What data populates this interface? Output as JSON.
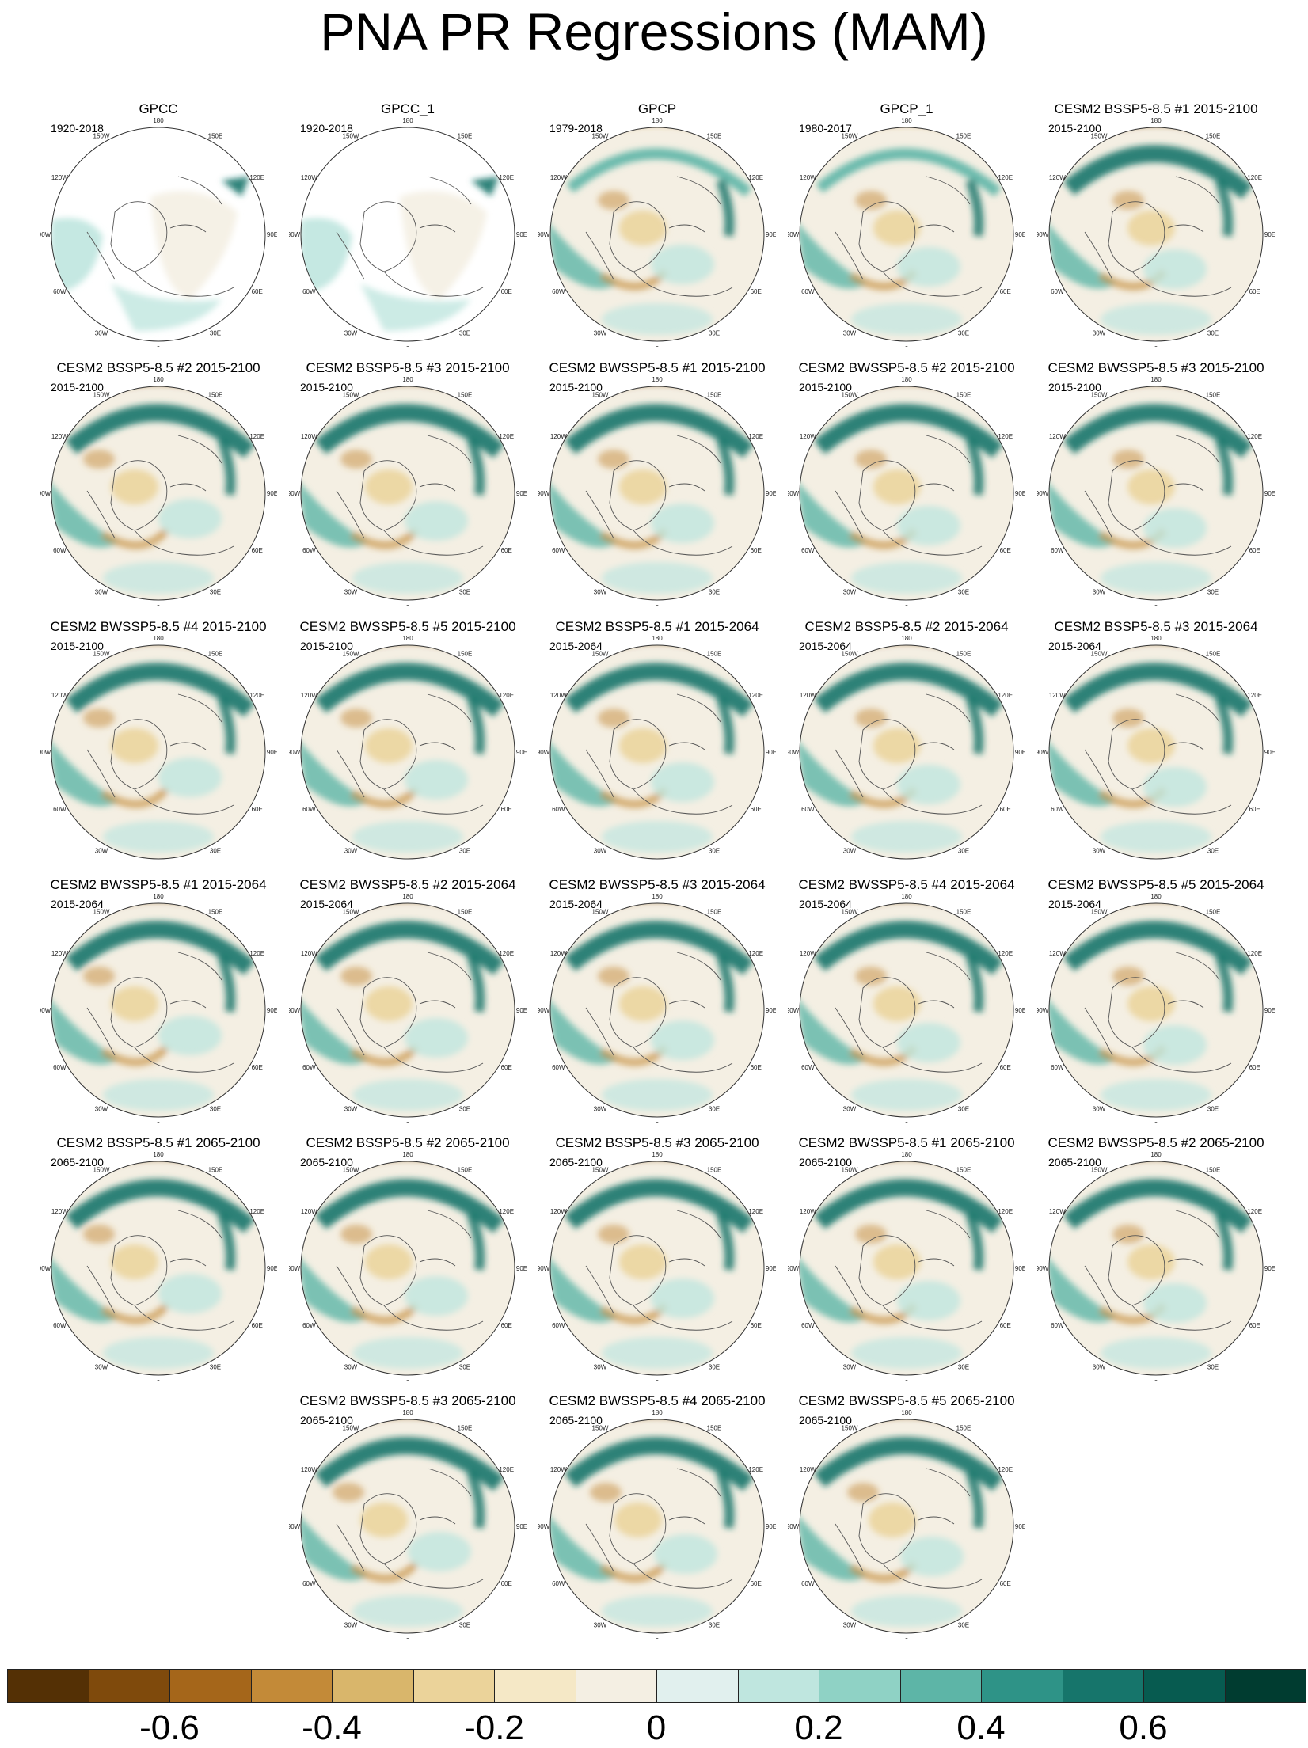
{
  "title": "PNA PR Regressions (MAM)",
  "longitude_labels": [
    "180",
    "150E",
    "120E",
    "90E",
    "60E",
    "30E",
    "0",
    "30W",
    "60W",
    "90W",
    "120W",
    "150W"
  ],
  "panels": [
    {
      "title": "GPCC",
      "years": "1920-2018",
      "style": "obs"
    },
    {
      "title": "GPCC_1",
      "years": "1920-2018",
      "style": "obs"
    },
    {
      "title": "GPCP",
      "years": "1979-2018",
      "style": "sat"
    },
    {
      "title": "GPCP_1",
      "years": "1980-2017",
      "style": "sat"
    },
    {
      "title": "CESM2 BSSP5-8.5 #1 2015-2100",
      "years": "2015-2100",
      "style": "model"
    },
    {
      "title": "CESM2 BSSP5-8.5 #2 2015-2100",
      "years": "2015-2100",
      "style": "model"
    },
    {
      "title": "CESM2 BSSP5-8.5 #3 2015-2100",
      "years": "2015-2100",
      "style": "model"
    },
    {
      "title": "CESM2 BWSSP5-8.5 #1 2015-2100",
      "years": "2015-2100",
      "style": "model"
    },
    {
      "title": "CESM2 BWSSP5-8.5 #2 2015-2100",
      "years": "2015-2100",
      "style": "model"
    },
    {
      "title": "CESM2 BWSSP5-8.5 #3 2015-2100",
      "years": "2015-2100",
      "style": "model"
    },
    {
      "title": "CESM2 BWSSP5-8.5 #4 2015-2100",
      "years": "2015-2100",
      "style": "model"
    },
    {
      "title": "CESM2 BWSSP5-8.5 #5 2015-2100",
      "years": "2015-2100",
      "style": "model"
    },
    {
      "title": "CESM2 BSSP5-8.5 #1 2015-2064",
      "years": "2015-2064",
      "style": "model"
    },
    {
      "title": "CESM2 BSSP5-8.5 #2 2015-2064",
      "years": "2015-2064",
      "style": "model"
    },
    {
      "title": "CESM2 BSSP5-8.5 #3 2015-2064",
      "years": "2015-2064",
      "style": "model"
    },
    {
      "title": "CESM2 BWSSP5-8.5 #1 2015-2064",
      "years": "2015-2064",
      "style": "model"
    },
    {
      "title": "CESM2 BWSSP5-8.5 #2 2015-2064",
      "years": "2015-2064",
      "style": "model"
    },
    {
      "title": "CESM2 BWSSP5-8.5 #3 2015-2064",
      "years": "2015-2064",
      "style": "model"
    },
    {
      "title": "CESM2 BWSSP5-8.5 #4 2015-2064",
      "years": "2015-2064",
      "style": "model"
    },
    {
      "title": "CESM2 BWSSP5-8.5 #5 2015-2064",
      "years": "2015-2064",
      "style": "model"
    },
    {
      "title": "CESM2 BSSP5-8.5 #1 2065-2100",
      "years": "2065-2100",
      "style": "model"
    },
    {
      "title": "CESM2 BSSP5-8.5 #2 2065-2100",
      "years": "2065-2100",
      "style": "model"
    },
    {
      "title": "CESM2 BSSP5-8.5 #3 2065-2100",
      "years": "2065-2100",
      "style": "model"
    },
    {
      "title": "CESM2 BWSSP5-8.5 #1 2065-2100",
      "years": "2065-2100",
      "style": "model"
    },
    {
      "title": "CESM2 BWSSP5-8.5 #2 2065-2100",
      "years": "2065-2100",
      "style": "model"
    },
    {
      "title": "CESM2 BWSSP5-8.5 #3 2065-2100",
      "years": "2065-2100",
      "style": "model"
    },
    {
      "title": "CESM2 BWSSP5-8.5 #4 2065-2100",
      "years": "2065-2100",
      "style": "model"
    },
    {
      "title": "CESM2 BWSSP5-8.5 #5 2065-2100",
      "years": "2065-2100",
      "style": "model"
    }
  ],
  "colorbar": {
    "colors": [
      "#543005",
      "#7f4a0c",
      "#a5661a",
      "#c38a38",
      "#d9b66b",
      "#ebd39a",
      "#f5e8c6",
      "#f4efe3",
      "#e1f0ee",
      "#bfe6df",
      "#8fd2c5",
      "#5db5a7",
      "#2e9387",
      "#16756b",
      "#075b50",
      "#003c30"
    ],
    "tick_labels": [
      "-0.6",
      "-0.4",
      "-0.2",
      "0",
      "0.2",
      "0.4",
      "0.6"
    ],
    "tick_values": [
      -0.6,
      -0.4,
      -0.2,
      0,
      0.2,
      0.4,
      0.6
    ],
    "range": [
      -0.8,
      0.8
    ]
  },
  "colors": {
    "dry_dark": "#7f4a0c",
    "dry_mid": "#c38a38",
    "dry_light": "#ebd39a",
    "neutral": "#f4efe3",
    "wet_light": "#bfe6df",
    "wet_mid": "#5db5a7",
    "wet_dark": "#16756b"
  }
}
